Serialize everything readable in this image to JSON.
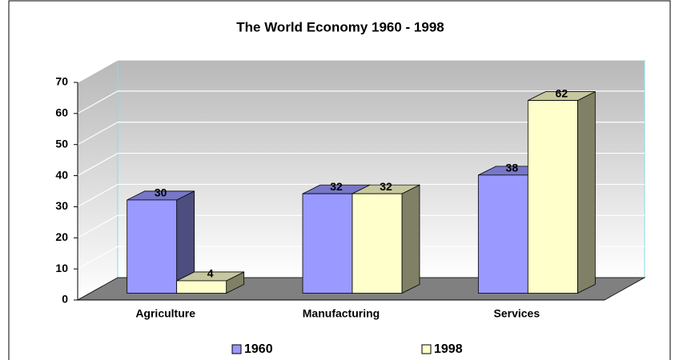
{
  "chart_data": {
    "type": "bar3d",
    "title": "The World Economy 1960 - 1998",
    "categories": [
      "Agriculture",
      "Manufacturing",
      "Services"
    ],
    "series": [
      {
        "name": "1960",
        "color": "#9999ff",
        "values": [
          30,
          32,
          38
        ]
      },
      {
        "name": "1998",
        "color": "#ffffcc",
        "values": [
          4,
          32,
          62
        ]
      }
    ],
    "ylim": [
      0,
      70
    ],
    "yticks": [
      0,
      10,
      20,
      30,
      40,
      50,
      60,
      70
    ],
    "grid": true,
    "legend": "bottom"
  }
}
